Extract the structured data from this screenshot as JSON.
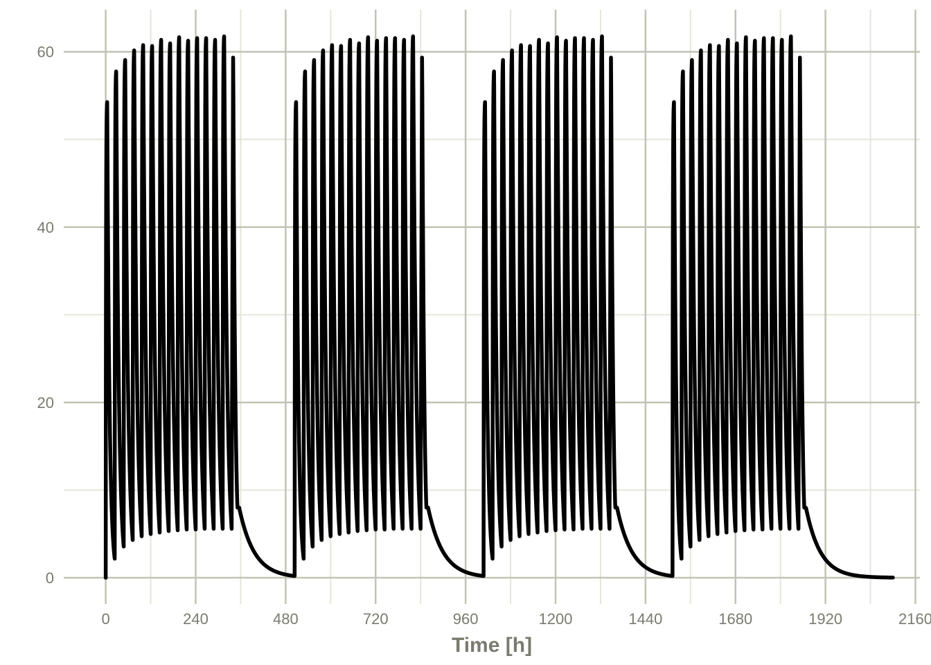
{
  "chart_data": {
    "type": "line",
    "title": "",
    "xlabel": "Time [h]",
    "ylabel": "",
    "xlim": [
      -112,
      2172
    ],
    "ylim": [
      -3,
      64.8
    ],
    "x_ticks": [
      0,
      240,
      480,
      720,
      960,
      1200,
      1440,
      1680,
      1920,
      2160
    ],
    "x_tick_labels": [
      "0",
      "240",
      "480",
      "720",
      "960",
      "1200",
      "1440",
      "1680",
      "1920",
      "2160"
    ],
    "y_ticks": [
      0,
      20,
      40,
      60
    ],
    "y_tick_labels": [
      "0",
      "20",
      "40",
      "60"
    ],
    "x_minor_ticks": [
      120,
      360,
      600,
      840,
      1080,
      1320,
      1560,
      1800,
      2040
    ],
    "y_minor_ticks": [
      10,
      30,
      50
    ],
    "grid": true,
    "background": "#ffffff",
    "grid_major_color": "#c2c2b5",
    "grid_minor_color": "#e4e6d8",
    "line_color": "#000000",
    "series": [
      {
        "description": "Repeated dosing cycles; each cycle has 15 doses then washout. Peaks (max), troughs (min) per dose.",
        "cycle_starts": [
          0,
          504,
          1008,
          1512
        ],
        "dose_interval_h": 24,
        "doses_per_cycle": 15,
        "peaks": [
          54.3,
          57.8,
          59.1,
          60.2,
          60.8,
          60.7,
          61.4,
          61.0,
          61.7,
          61.3,
          61.6,
          61.6,
          61.4,
          61.8,
          61.0
        ],
        "troughs": [
          3.0,
          4.7,
          5.6,
          6.1,
          6.4,
          6.6,
          6.8,
          6.9,
          7.0,
          7.0,
          7.1,
          7.1,
          7.1,
          7.1,
          7.1
        ],
        "washout_end_value": 0.2,
        "final_end_x": 2100
      }
    ]
  }
}
